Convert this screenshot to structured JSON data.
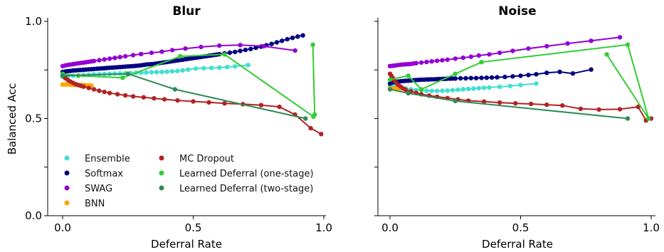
{
  "figure": {
    "ylabel": "Balanced Acc",
    "legend": [
      {
        "name": "Ensemble",
        "color": "#40E0D0"
      },
      {
        "name": "Softmax",
        "color": "#000080"
      },
      {
        "name": "SWAG",
        "color": "#9400D3"
      },
      {
        "name": "BNN",
        "color": "#FFA500"
      },
      {
        "name": "MC Dropout",
        "color": "#B22222"
      },
      {
        "name": "Learned Deferral (one-stage)",
        "color": "#32CD32"
      },
      {
        "name": "Learned Deferral (two-stage)",
        "color": "#2E8B57"
      }
    ]
  },
  "chart_data": [
    {
      "type": "line",
      "title": "Blur",
      "xlabel": "Deferral Rate",
      "ylabel": "Balanced Acc",
      "xlim": [
        -0.02,
        1.0
      ],
      "ylim": [
        0.0,
        1.0
      ],
      "xticks": [
        {
          "value": 0.0,
          "label": "0.0"
        },
        {
          "value": 0.5,
          "label": "0.5"
        },
        {
          "value": 1.0,
          "label": "1.0"
        }
      ],
      "yticks": [
        {
          "value": 0.0,
          "label": "0.0"
        },
        {
          "value": 0.25,
          "label": ""
        },
        {
          "value": 0.5,
          "label": "0.5"
        },
        {
          "value": 0.75,
          "label": ""
        },
        {
          "value": 1.0,
          "label": "1.0"
        }
      ],
      "legend": "lower-left",
      "series": [
        {
          "name": "Ensemble",
          "color": "#40E0D0",
          "x": [
            0.0,
            0.02,
            0.04,
            0.06,
            0.08,
            0.1,
            0.12,
            0.14,
            0.16,
            0.18,
            0.2,
            0.22,
            0.24,
            0.26,
            0.28,
            0.3,
            0.32,
            0.34,
            0.36,
            0.38,
            0.4,
            0.42,
            0.44,
            0.46,
            0.48,
            0.51,
            0.54,
            0.57,
            0.6,
            0.63,
            0.66,
            0.71
          ],
          "y": [
            0.715,
            0.718,
            0.72,
            0.722,
            0.724,
            0.725,
            0.727,
            0.728,
            0.729,
            0.73,
            0.731,
            0.732,
            0.733,
            0.734,
            0.735,
            0.736,
            0.737,
            0.738,
            0.739,
            0.74,
            0.741,
            0.743,
            0.745,
            0.748,
            0.752,
            0.757,
            0.759,
            0.76,
            0.762,
            0.765,
            0.768,
            0.775
          ]
        },
        {
          "name": "Softmax",
          "color": "#000080",
          "x": [
            0.0,
            0.01,
            0.02,
            0.03,
            0.04,
            0.05,
            0.06,
            0.07,
            0.08,
            0.09,
            0.1,
            0.11,
            0.12,
            0.13,
            0.14,
            0.15,
            0.16,
            0.17,
            0.18,
            0.19,
            0.2,
            0.21,
            0.22,
            0.23,
            0.24,
            0.25,
            0.26,
            0.27,
            0.28,
            0.29,
            0.3,
            0.31,
            0.32,
            0.33,
            0.34,
            0.35,
            0.36,
            0.37,
            0.38,
            0.39,
            0.4,
            0.41,
            0.42,
            0.43,
            0.44,
            0.45,
            0.46,
            0.47,
            0.48,
            0.49,
            0.5,
            0.51,
            0.52,
            0.53,
            0.54,
            0.55,
            0.56,
            0.57,
            0.58,
            0.59,
            0.6,
            0.62,
            0.64,
            0.66,
            0.68,
            0.7,
            0.72,
            0.74,
            0.76,
            0.78,
            0.8,
            0.82,
            0.84,
            0.86,
            0.88,
            0.9,
            0.92
          ],
          "y": [
            0.74,
            0.742,
            0.744,
            0.745,
            0.747,
            0.748,
            0.749,
            0.75,
            0.751,
            0.752,
            0.753,
            0.754,
            0.755,
            0.756,
            0.757,
            0.758,
            0.759,
            0.76,
            0.761,
            0.762,
            0.763,
            0.764,
            0.765,
            0.766,
            0.767,
            0.768,
            0.769,
            0.77,
            0.771,
            0.772,
            0.774,
            0.776,
            0.778,
            0.779,
            0.78,
            0.781,
            0.783,
            0.785,
            0.787,
            0.789,
            0.791,
            0.793,
            0.795,
            0.797,
            0.799,
            0.801,
            0.803,
            0.805,
            0.807,
            0.809,
            0.811,
            0.813,
            0.815,
            0.817,
            0.819,
            0.821,
            0.823,
            0.825,
            0.827,
            0.829,
            0.831,
            0.835,
            0.839,
            0.843,
            0.848,
            0.853,
            0.858,
            0.864,
            0.87,
            0.877,
            0.884,
            0.892,
            0.9,
            0.908,
            0.915,
            0.922,
            0.928
          ]
        },
        {
          "name": "SWAG",
          "color": "#9400D3",
          "x": [
            0.0,
            0.01,
            0.02,
            0.03,
            0.04,
            0.05,
            0.06,
            0.07,
            0.08,
            0.09,
            0.1,
            0.11,
            0.12,
            0.14,
            0.16,
            0.18,
            0.2,
            0.22,
            0.24,
            0.27,
            0.3,
            0.34,
            0.38,
            0.42,
            0.47,
            0.53,
            0.6,
            0.68,
            0.77,
            0.89
          ],
          "y": [
            0.77,
            0.773,
            0.776,
            0.778,
            0.78,
            0.782,
            0.784,
            0.786,
            0.788,
            0.79,
            0.792,
            0.794,
            0.796,
            0.8,
            0.804,
            0.808,
            0.812,
            0.816,
            0.82,
            0.826,
            0.832,
            0.838,
            0.844,
            0.852,
            0.86,
            0.868,
            0.875,
            0.878,
            0.872,
            0.85
          ]
        },
        {
          "name": "BNN",
          "color": "#FFA500",
          "x": [
            0.0,
            0.01,
            0.02,
            0.03,
            0.04,
            0.05,
            0.06,
            0.07,
            0.08,
            0.09,
            0.1,
            0.11
          ],
          "y": [
            0.675,
            0.675,
            0.675,
            0.674,
            0.674,
            0.673,
            0.673,
            0.672,
            0.672,
            0.671,
            0.671,
            0.67
          ]
        },
        {
          "name": "MC Dropout",
          "color": "#B22222",
          "x": [
            0.0,
            0.01,
            0.02,
            0.03,
            0.04,
            0.05,
            0.06,
            0.07,
            0.08,
            0.1,
            0.12,
            0.14,
            0.16,
            0.18,
            0.21,
            0.24,
            0.27,
            0.31,
            0.35,
            0.39,
            0.44,
            0.5,
            0.56,
            0.62,
            0.69,
            0.76,
            0.83,
            0.89,
            0.95,
            0.99
          ],
          "y": [
            0.72,
            0.708,
            0.698,
            0.69,
            0.683,
            0.677,
            0.672,
            0.668,
            0.664,
            0.657,
            0.65,
            0.643,
            0.637,
            0.631,
            0.625,
            0.619,
            0.614,
            0.609,
            0.604,
            0.599,
            0.593,
            0.588,
            0.583,
            0.578,
            0.574,
            0.569,
            0.56,
            0.52,
            0.45,
            0.42
          ]
        },
        {
          "name": "Learned Deferral (one-stage)",
          "color": "#32CD32",
          "x": [
            0.0,
            0.06,
            0.23,
            0.45,
            0.62,
            0.96,
            0.965,
            0.958
          ],
          "y": [
            0.73,
            0.72,
            0.71,
            0.82,
            0.83,
            0.51,
            0.52,
            0.88
          ]
        },
        {
          "name": "Learned Deferral (two-stage)",
          "color": "#2E8B57",
          "x": [
            0.0,
            0.25,
            0.43,
            0.93
          ],
          "y": [
            0.72,
            0.73,
            0.65,
            0.5
          ]
        }
      ]
    },
    {
      "type": "line",
      "title": "Noise",
      "xlabel": "Deferral Rate",
      "ylabel": "",
      "xlim": [
        -0.02,
        1.0
      ],
      "ylim": [
        0.0,
        1.0
      ],
      "xticks": [
        {
          "value": 0.0,
          "label": "0.0"
        },
        {
          "value": 0.5,
          "label": "0.5"
        },
        {
          "value": 1.0,
          "label": "1.0"
        }
      ],
      "yticks": [
        {
          "value": 0.0,
          "label": ""
        },
        {
          "value": 0.25,
          "label": ""
        },
        {
          "value": 0.5,
          "label": ""
        },
        {
          "value": 0.75,
          "label": ""
        },
        {
          "value": 1.0,
          "label": ""
        }
      ],
      "series": [
        {
          "name": "Ensemble",
          "color": "#40E0D0",
          "x": [
            0.0,
            0.02,
            0.04,
            0.06,
            0.08,
            0.1,
            0.12,
            0.14,
            0.16,
            0.18,
            0.2,
            0.22,
            0.24,
            0.26,
            0.28,
            0.3,
            0.32,
            0.34,
            0.36,
            0.38,
            0.42,
            0.46,
            0.5,
            0.56
          ],
          "y": [
            0.67,
            0.665,
            0.66,
            0.655,
            0.65,
            0.647,
            0.645,
            0.643,
            0.642,
            0.642,
            0.643,
            0.644,
            0.646,
            0.648,
            0.65,
            0.652,
            0.654,
            0.656,
            0.658,
            0.66,
            0.663,
            0.667,
            0.672,
            0.68
          ]
        },
        {
          "name": "Softmax",
          "color": "#000080",
          "x": [
            0.0,
            0.01,
            0.02,
            0.03,
            0.04,
            0.05,
            0.06,
            0.07,
            0.08,
            0.09,
            0.1,
            0.11,
            0.12,
            0.13,
            0.14,
            0.15,
            0.16,
            0.17,
            0.18,
            0.19,
            0.2,
            0.21,
            0.22,
            0.23,
            0.24,
            0.25,
            0.27,
            0.29,
            0.31,
            0.33,
            0.35,
            0.37,
            0.39,
            0.41,
            0.44,
            0.47,
            0.5,
            0.53,
            0.56,
            0.6,
            0.65,
            0.7,
            0.77
          ],
          "y": [
            0.68,
            0.685,
            0.688,
            0.69,
            0.692,
            0.693,
            0.694,
            0.695,
            0.696,
            0.697,
            0.698,
            0.699,
            0.7,
            0.7,
            0.701,
            0.701,
            0.702,
            0.702,
            0.703,
            0.703,
            0.704,
            0.704,
            0.705,
            0.705,
            0.706,
            0.706,
            0.707,
            0.707,
            0.708,
            0.708,
            0.709,
            0.71,
            0.711,
            0.712,
            0.714,
            0.717,
            0.72,
            0.724,
            0.728,
            0.735,
            0.74,
            0.732,
            0.752
          ]
        },
        {
          "name": "SWAG",
          "color": "#9400D3",
          "x": [
            0.0,
            0.01,
            0.02,
            0.03,
            0.04,
            0.05,
            0.06,
            0.07,
            0.08,
            0.09,
            0.1,
            0.12,
            0.14,
            0.16,
            0.18,
            0.2,
            0.22,
            0.25,
            0.28,
            0.31,
            0.34,
            0.38,
            0.42,
            0.47,
            0.53,
            0.6,
            0.68,
            0.77,
            0.88
          ],
          "y": [
            0.77,
            0.771,
            0.773,
            0.775,
            0.777,
            0.778,
            0.779,
            0.78,
            0.781,
            0.783,
            0.785,
            0.788,
            0.791,
            0.794,
            0.797,
            0.8,
            0.803,
            0.808,
            0.813,
            0.818,
            0.824,
            0.83,
            0.838,
            0.848,
            0.86,
            0.872,
            0.886,
            0.9,
            0.918
          ]
        },
        {
          "name": "BNN",
          "color": "#FFA500",
          "x": [
            0.0,
            0.01,
            0.02,
            0.03,
            0.04
          ],
          "y": [
            0.655,
            0.655,
            0.655,
            0.655,
            0.655
          ]
        },
        {
          "name": "MC Dropout",
          "color": "#B22222",
          "x": [
            0.0,
            0.005,
            0.01,
            0.015,
            0.02,
            0.03,
            0.04,
            0.05,
            0.06,
            0.08,
            0.1,
            0.12,
            0.15,
            0.18,
            0.22,
            0.26,
            0.3,
            0.36,
            0.42,
            0.48,
            0.54,
            0.6,
            0.66,
            0.73,
            0.8,
            0.88,
            0.95,
            0.98,
            1.0
          ],
          "y": [
            0.73,
            0.72,
            0.71,
            0.7,
            0.69,
            0.675,
            0.665,
            0.655,
            0.648,
            0.64,
            0.632,
            0.625,
            0.618,
            0.612,
            0.605,
            0.598,
            0.592,
            0.587,
            0.582,
            0.578,
            0.575,
            0.571,
            0.567,
            0.55,
            0.546,
            0.548,
            0.56,
            0.49,
            0.5
          ]
        },
        {
          "name": "Learned Deferral (one-stage)",
          "color": "#32CD32",
          "x": [
            0.0,
            0.07,
            0.12,
            0.25,
            0.35,
            0.91,
            0.99,
            0.83
          ],
          "y": [
            0.7,
            0.72,
            0.65,
            0.73,
            0.79,
            0.88,
            0.5,
            0.83
          ]
        },
        {
          "name": "Learned Deferral (two-stage)",
          "color": "#2E8B57",
          "x": [
            0.0,
            0.07,
            0.25,
            0.91
          ],
          "y": [
            0.65,
            0.63,
            0.59,
            0.5
          ]
        }
      ]
    }
  ]
}
